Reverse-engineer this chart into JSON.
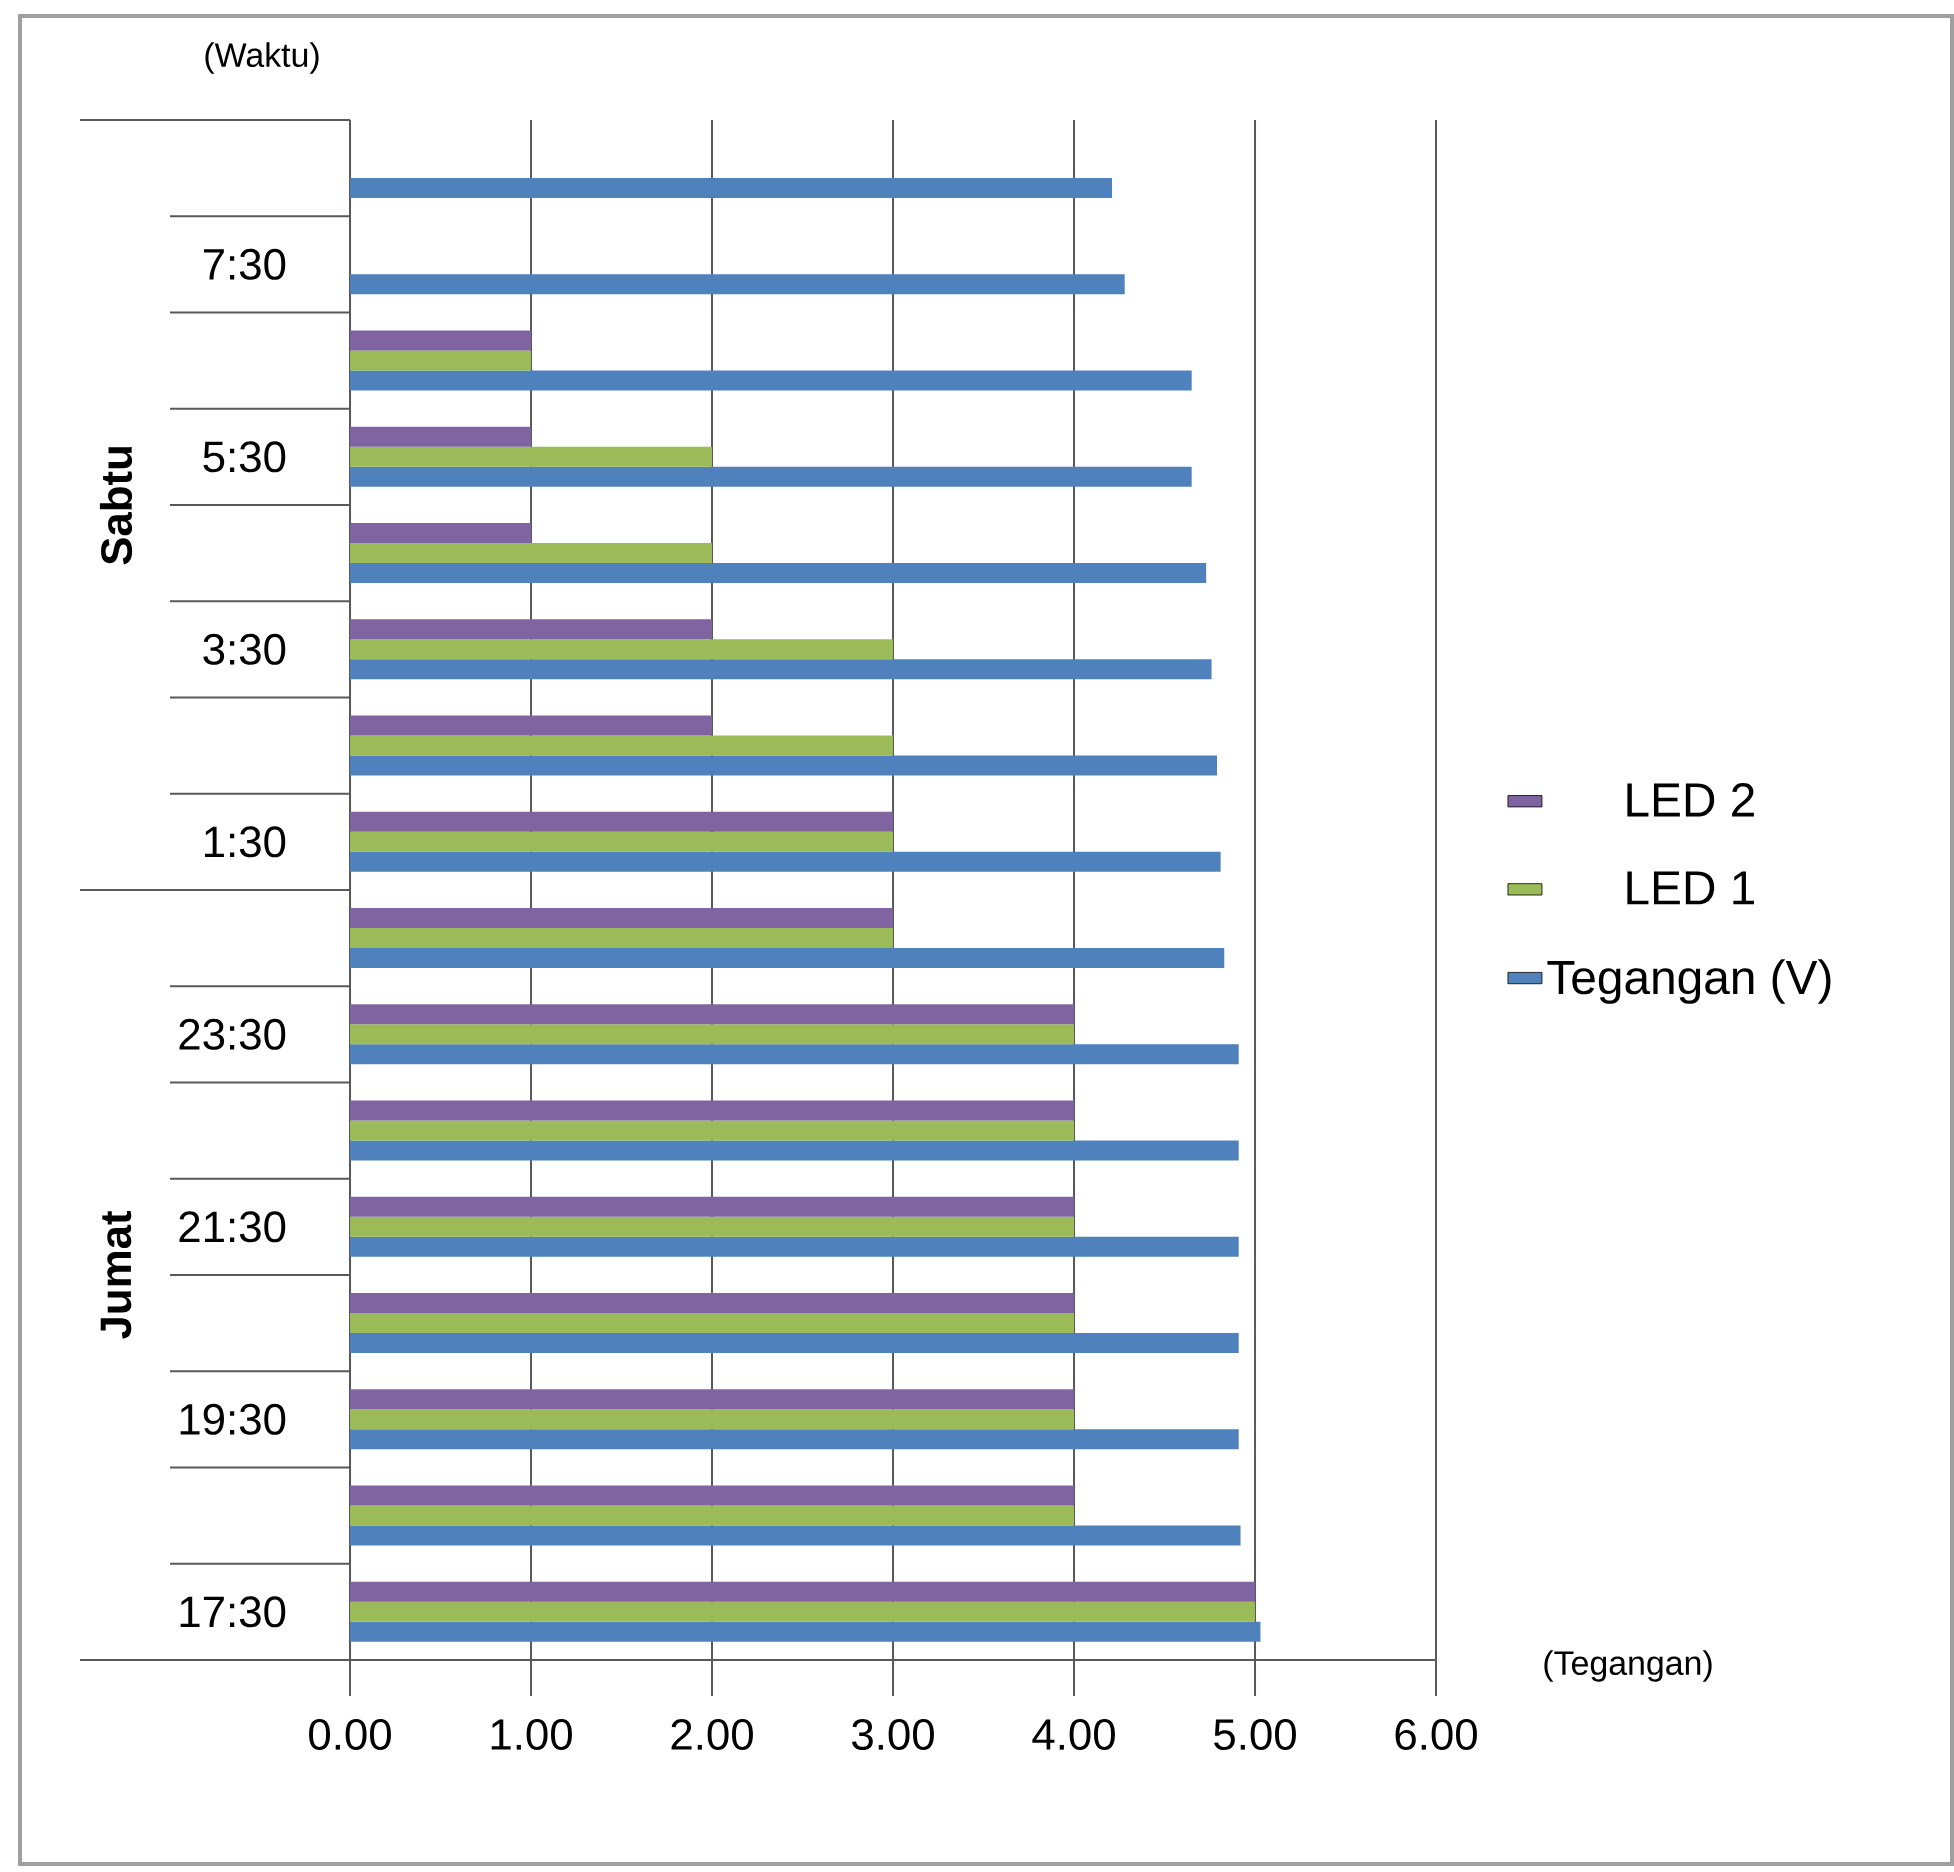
{
  "chart_data": {
    "type": "bar",
    "orientation": "horizontal",
    "xlabel": "(Tegangan)",
    "ylabel": "(Waktu)",
    "annotations": [
      "Sabtu",
      "Jumat"
    ],
    "categories": [
      null,
      "7:30",
      null,
      "5:30",
      null,
      "3:30",
      null,
      "1:30",
      null,
      "23:30",
      null,
      "21:30",
      null,
      "19:30",
      null,
      "17:30"
    ],
    "series": [
      {
        "name": "Tegangan (V)",
        "color": "#4f81bd",
        "values": [
          4.21,
          4.28,
          4.65,
          4.65,
          4.73,
          4.76,
          4.79,
          4.81,
          4.83,
          4.91,
          4.91,
          4.91,
          4.91,
          4.91,
          4.92,
          5.03
        ]
      },
      {
        "name": "LED 1",
        "color": "#9bbb59",
        "values": [
          0,
          0,
          1,
          2,
          2,
          3,
          3,
          3,
          3,
          4,
          4,
          4,
          4,
          4,
          4,
          5
        ]
      },
      {
        "name": "LED 2",
        "color": "#8064a2",
        "values": [
          0,
          0,
          1,
          1,
          1,
          2,
          2,
          3,
          3,
          4,
          4,
          4,
          4,
          4,
          4,
          5
        ]
      }
    ],
    "xlim": [
      0,
      6
    ],
    "xticks": [
      {
        "value": 0,
        "label": "0.00"
      },
      {
        "value": 1,
        "label": "1.00"
      },
      {
        "value": 2,
        "label": "2.00"
      },
      {
        "value": 3,
        "label": "3.00"
      },
      {
        "value": 4,
        "label": "4.00"
      },
      {
        "value": 5,
        "label": "5.00"
      },
      {
        "value": 6,
        "label": "6.00"
      }
    ],
    "grid": "x",
    "legend": "right"
  }
}
